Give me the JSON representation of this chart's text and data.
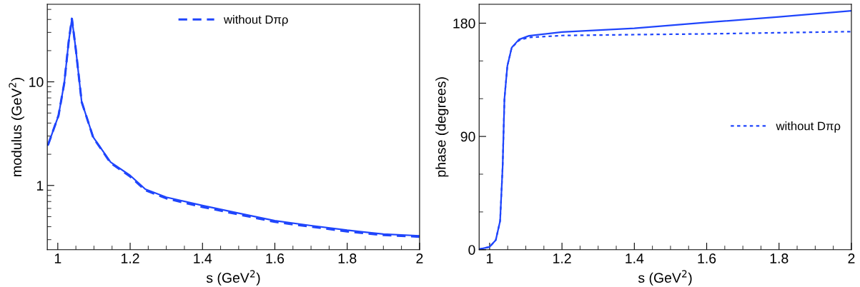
{
  "chart_data": [
    {
      "type": "line",
      "xlabel": "s (GeV$^{2}$)",
      "ylabel": "modulus (GeV$^{2}$)",
      "log": "y",
      "xlim": [
        0.971,
        2
      ],
      "ylim": [
        0.24,
        56
      ],
      "xticks": [
        1,
        1.2,
        1.4,
        1.6,
        1.8,
        2
      ],
      "yticks": [
        1,
        10
      ],
      "legend": "top",
      "grid": false,
      "series": [
        {
          "color": "#1f45fc",
          "line_style": "solid",
          "x": [
            0.973,
            1.002,
            1.018,
            1.03,
            1.039,
            1.05,
            1.066,
            1.098,
            1.146,
            1.2,
            1.242,
            1.3,
            1.4,
            1.5,
            1.6,
            1.7,
            1.8,
            1.9,
            2.0
          ],
          "values": [
            2.46,
            4.73,
            9.8,
            24.3,
            40.7,
            20.3,
            6.4,
            2.92,
            1.68,
            1.25,
            0.92,
            0.77,
            0.64,
            0.54,
            0.457,
            0.41,
            0.37,
            0.34,
            0.327
          ]
        },
        {
          "name": "without Dπρ",
          "color": "#1f45fc",
          "line_style": "dashed",
          "x": [
            0.973,
            1.002,
            1.018,
            1.03,
            1.039,
            1.05,
            1.066,
            1.098,
            1.146,
            1.2,
            1.242,
            1.3,
            1.4,
            1.5,
            1.6,
            1.7,
            1.8,
            1.9,
            2.0
          ],
          "values": [
            2.46,
            4.73,
            9.8,
            24.3,
            40.7,
            20.3,
            6.4,
            2.9,
            1.65,
            1.22,
            0.9,
            0.75,
            0.62,
            0.525,
            0.445,
            0.4,
            0.36,
            0.332,
            0.32
          ]
        }
      ]
    },
    {
      "type": "line",
      "xlabel": "s (GeV$^{2}$)",
      "ylabel": "phase (degrees)",
      "xlim": [
        0.971,
        2
      ],
      "ylim": [
        0,
        195
      ],
      "xticks": [
        1,
        1.2,
        1.4,
        1.6,
        1.8,
        2
      ],
      "yticks": [
        0,
        90,
        180
      ],
      "legend": "right",
      "grid": false,
      "series": [
        {
          "color": "#1f45fc",
          "line_style": "solid",
          "x": [
            0.971,
            1.0,
            1.017,
            1.029,
            1.036,
            1.041,
            1.049,
            1.061,
            1.081,
            1.109,
            1.2,
            1.4,
            1.6,
            1.8,
            2.0
          ],
          "values": [
            0.4,
            2.2,
            7.6,
            22.8,
            66,
            120,
            146,
            160.5,
            167,
            170,
            173,
            176,
            180.6,
            185,
            189.8
          ]
        },
        {
          "name": "without Dπρ",
          "color": "#1f45fc",
          "line_style": "dotted",
          "x": [
            0.971,
            1.0,
            1.017,
            1.029,
            1.036,
            1.041,
            1.049,
            1.061,
            1.081,
            1.109,
            1.2,
            1.4,
            1.6,
            1.8,
            2.0
          ],
          "values": [
            0.4,
            2.2,
            7.6,
            22.8,
            66,
            120,
            146,
            160.5,
            166.3,
            168.7,
            170.2,
            170.9,
            171.5,
            172.4,
            173.3
          ]
        }
      ]
    }
  ]
}
